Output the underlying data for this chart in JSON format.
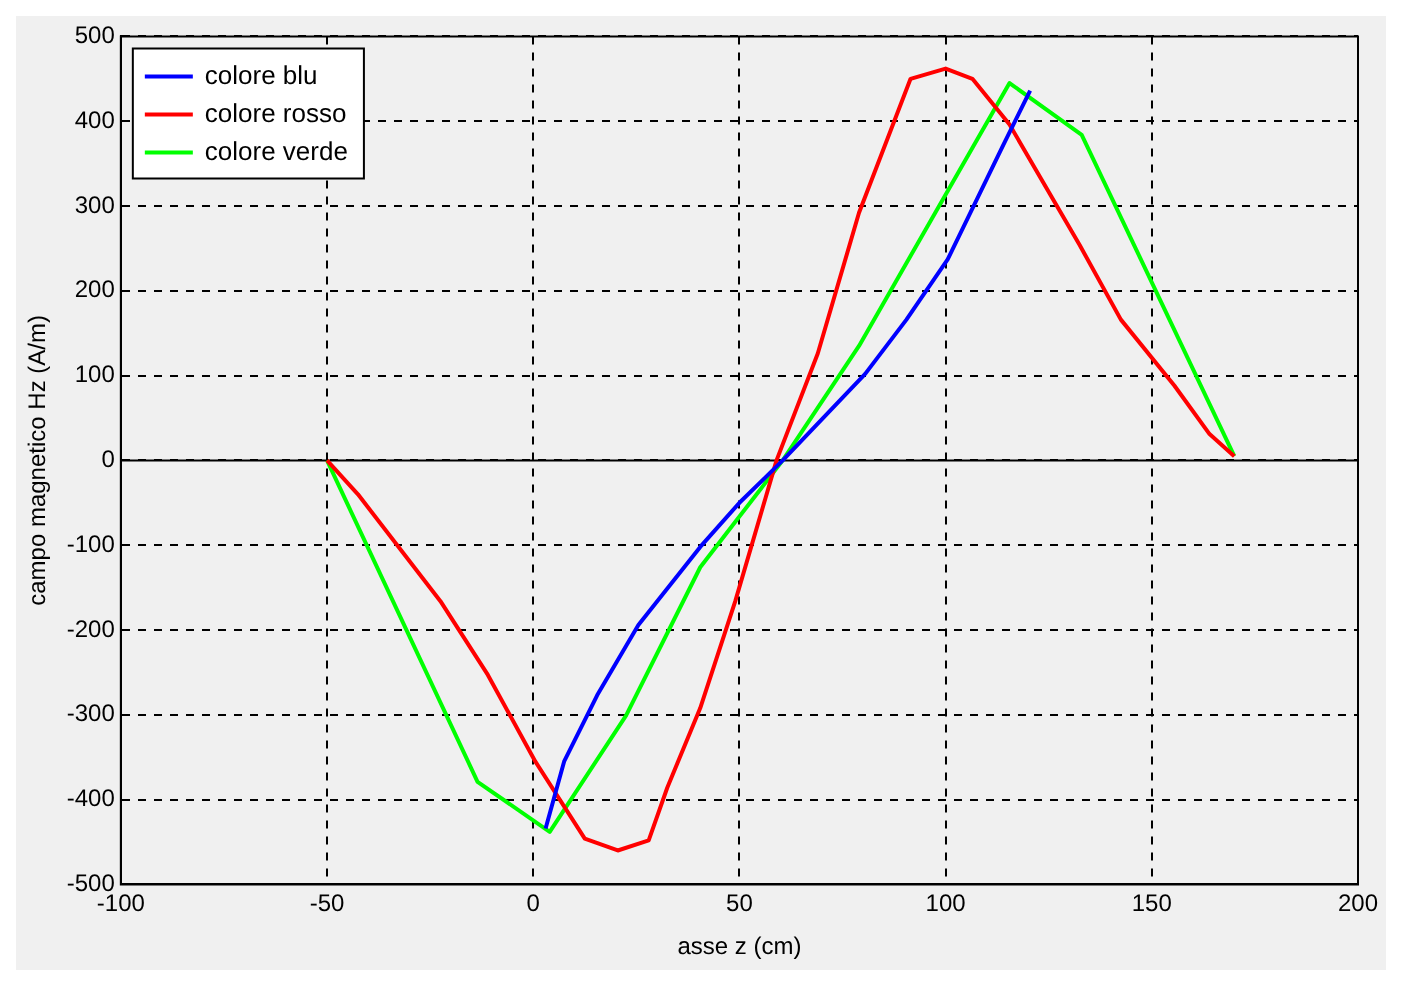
{
  "chart_data": {
    "type": "line",
    "xlabel": "asse z (cm)",
    "ylabel": "campo magnetico Hz (A/m)",
    "xlim": [
      -100,
      200
    ],
    "xticks": [
      -100,
      -50,
      0,
      50,
      100,
      150,
      200
    ],
    "ylim": [
      -500,
      500
    ],
    "yticks": [
      -500,
      -400,
      -300,
      -200,
      -100,
      0,
      100,
      200,
      300,
      400,
      500
    ],
    "grid": true,
    "legend": "top left",
    "marker": "none",
    "line_style": "solid",
    "ref_lines": [
      {
        "axis": "y",
        "value": 0,
        "color": "#000000",
        "line_style": "solid"
      }
    ],
    "series": [
      {
        "name": "colore blu",
        "color": "#0000ff",
        "x": [
          3,
          7.5,
          15.5,
          25.5,
          40.5,
          50,
          60.5,
          80.5,
          90.5,
          100.5,
          114,
          120.5
        ],
        "values": [
          -434,
          -355,
          -277,
          -194,
          -102,
          -50,
          0,
          102,
          166,
          237,
          372,
          436
        ]
      },
      {
        "name": "colore rosso",
        "color": "#ff0000",
        "x": [
          -50,
          -42.5,
          -22.5,
          -11,
          0.5,
          12.5,
          20.5,
          28,
          32.5,
          40.5,
          49,
          59,
          69,
          79,
          91.5,
          100,
          106.5,
          115.5,
          132.5,
          142.5,
          155.5,
          164,
          170
        ],
        "values": [
          0,
          -40,
          -166,
          -253,
          -355,
          -446,
          -460,
          -448,
          -386,
          -292,
          -166,
          0,
          126,
          292,
          450,
          462,
          450,
          396,
          254,
          166,
          88,
          31,
          5
        ]
      },
      {
        "name": "colore verde",
        "color": "#00ff00",
        "x": [
          -50,
          -13.5,
          4,
          22.5,
          40.5,
          60.5,
          79,
          115.5,
          133,
          170
        ],
        "values": [
          0,
          -379,
          -438,
          -301,
          -126,
          0,
          135,
          445,
          384,
          5
        ]
      }
    ]
  }
}
